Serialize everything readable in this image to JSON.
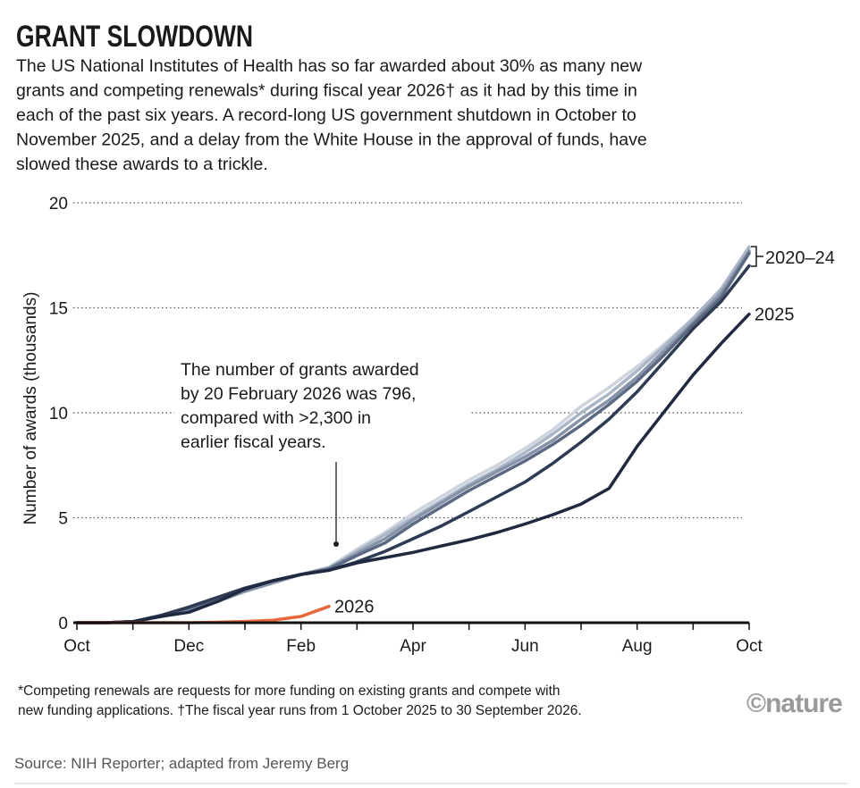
{
  "chart_data": {
    "type": "line",
    "title": "GRANT SLOWDOWN",
    "subtitle": [
      "The US National Institutes of Health has so far awarded about 30% as many new",
      "grants and competing renewals* during fiscal year 2026† as it had by this time in",
      "each of the past six years. A record-long US government shutdown in October to",
      "November 2025, and a delay from the White House in the approval of funds, have",
      "slowed these awards to a trickle."
    ],
    "ylabel": "Number of awards (thousands)",
    "categories": [
      "Oct",
      null,
      null,
      null,
      "Dec",
      null,
      null,
      null,
      "Feb",
      null,
      null,
      null,
      "Apr",
      null,
      null,
      null,
      "Jun",
      null,
      null,
      null,
      "Aug",
      null,
      null,
      null,
      "Oct"
    ],
    "ylim": [
      0,
      20
    ],
    "yticks": [
      0,
      5,
      10,
      15,
      20
    ],
    "grid": true,
    "series": [
      {
        "name": "2020–24",
        "color": "#cdd4de",
        "values": [
          0,
          0,
          0.05,
          0.3,
          0.6,
          1.0,
          1.5,
          1.9,
          2.3,
          2.65,
          3.5,
          4.3,
          5.2,
          6.0,
          6.8,
          7.5,
          8.3,
          9.2,
          10.3,
          11.2,
          12.2,
          13.3,
          14.5,
          15.8,
          17.8
        ]
      },
      {
        "color": "#aab5c5",
        "values": [
          0,
          0,
          0.05,
          0.3,
          0.6,
          1.0,
          1.5,
          1.9,
          2.3,
          2.6,
          3.4,
          4.2,
          5.0,
          5.8,
          6.6,
          7.3,
          8.1,
          9.0,
          10.0,
          10.9,
          12.0,
          13.2,
          14.5,
          15.9,
          17.9
        ]
      },
      {
        "color": "#8592a7",
        "values": [
          0,
          0,
          0.05,
          0.3,
          0.6,
          1.0,
          1.5,
          1.9,
          2.3,
          2.6,
          3.3,
          4.0,
          4.9,
          5.7,
          6.5,
          7.2,
          7.9,
          8.7,
          9.7,
          10.6,
          11.7,
          13.0,
          14.3,
          15.7,
          17.7
        ]
      },
      {
        "color": "#5b6a82",
        "values": [
          0,
          0,
          0.05,
          0.35,
          0.7,
          1.1,
          1.6,
          2.0,
          2.3,
          2.55,
          3.2,
          3.8,
          4.7,
          5.5,
          6.3,
          7.0,
          7.7,
          8.5,
          9.4,
          10.4,
          11.5,
          12.8,
          14.2,
          15.5,
          17.6
        ]
      },
      {
        "color": "#2e3b53",
        "values": [
          0,
          0,
          0.05,
          0.35,
          0.75,
          1.2,
          1.65,
          2.0,
          2.3,
          2.5,
          2.9,
          3.4,
          4.0,
          4.6,
          5.3,
          6.0,
          6.7,
          7.6,
          8.6,
          9.7,
          11.0,
          12.5,
          14.0,
          15.3,
          17.0
        ]
      },
      {
        "name": "2025",
        "color": "#1f2a40",
        "values": [
          0,
          0,
          0.05,
          0.3,
          0.5,
          1.0,
          1.6,
          2.0,
          2.3,
          2.5,
          2.85,
          3.1,
          3.35,
          3.65,
          3.95,
          4.3,
          4.7,
          5.15,
          5.65,
          6.4,
          8.4,
          10.1,
          11.8,
          13.3,
          14.7
        ]
      },
      {
        "name": "2026",
        "color": "#e8673a",
        "values": [
          0,
          0,
          0,
          0,
          0,
          0.02,
          0.06,
          0.12,
          0.3,
          0.78,
          null,
          null,
          null,
          null,
          null,
          null,
          null,
          null,
          null,
          null,
          null,
          null,
          null,
          null,
          null
        ]
      }
    ],
    "annotation": [
      "The number of grants awarded",
      "by 20 February 2026 was 796,",
      "compared with >2,300 in",
      "earlier fiscal years."
    ],
    "footnote": [
      "*Competing renewals are requests for more funding on existing grants and compete with",
      "new funding applications. †The fiscal year runs from 1 October 2025 to 30 September 2026."
    ],
    "logo": "©nature",
    "source": "Source: NIH Reporter; adapted from Jeremy Berg"
  }
}
